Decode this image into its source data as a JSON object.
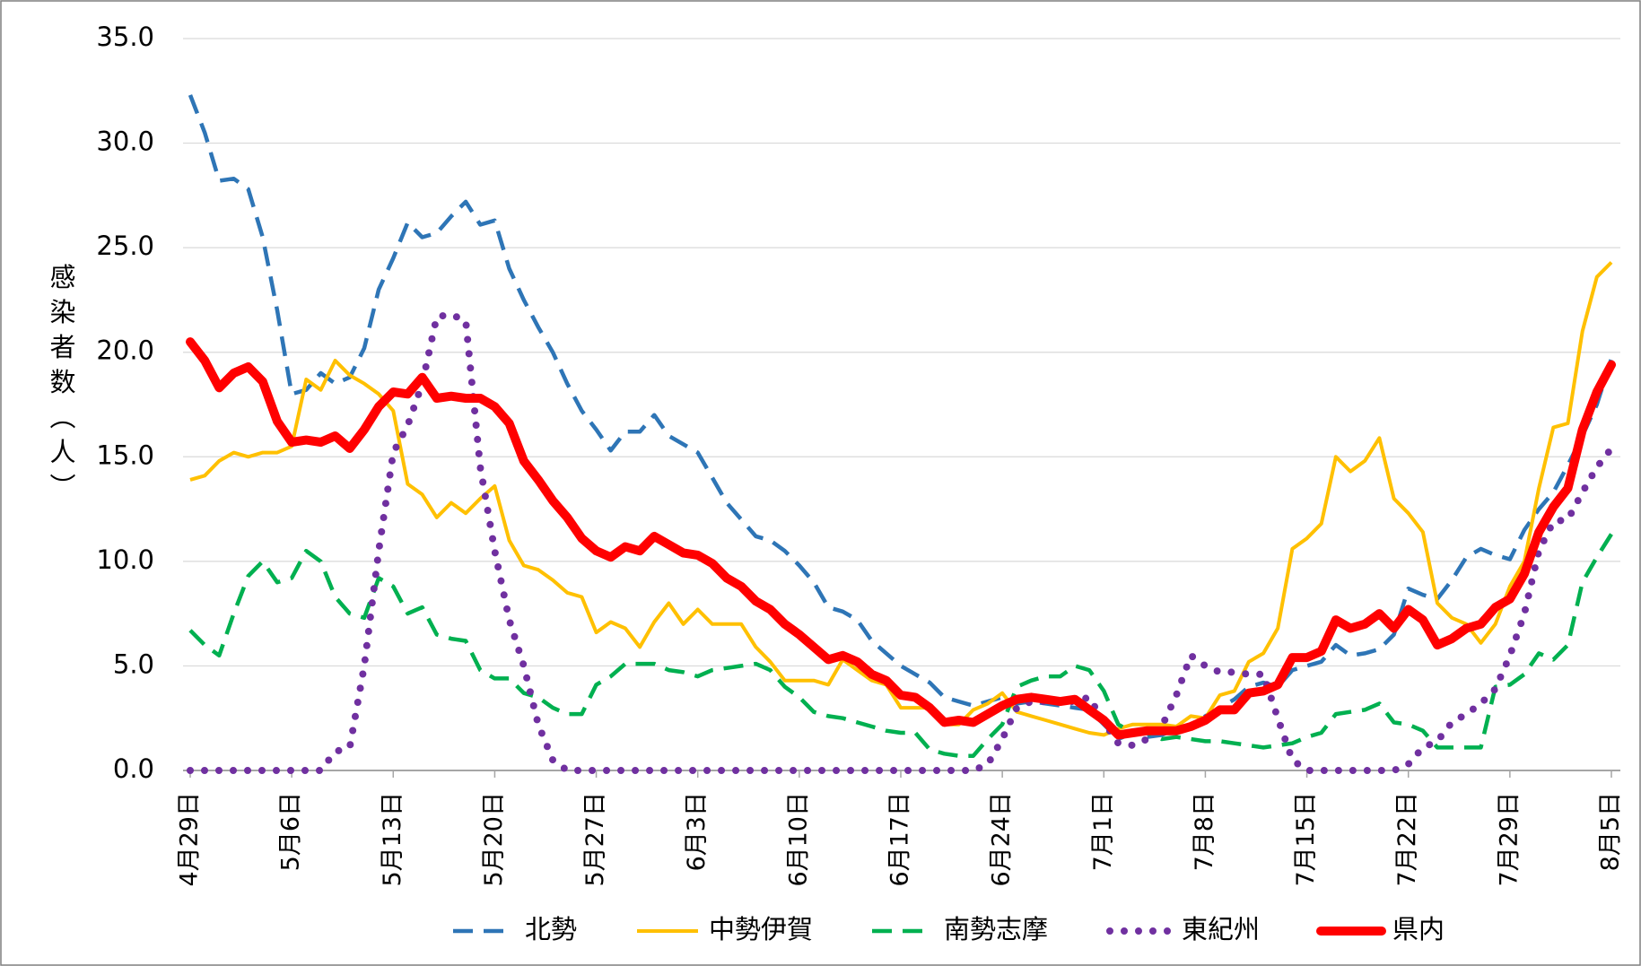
{
  "chart_data": {
    "type": "line",
    "y_label": "感染者数（人）",
    "categories": [
      "4月29日",
      null,
      null,
      null,
      null,
      null,
      null,
      "5月6日",
      null,
      null,
      null,
      null,
      null,
      null,
      "5月13日",
      null,
      null,
      null,
      null,
      null,
      null,
      "5月20日",
      null,
      null,
      null,
      null,
      null,
      null,
      "5月27日",
      null,
      null,
      null,
      null,
      null,
      null,
      "6月3日",
      null,
      null,
      null,
      null,
      null,
      null,
      "6月10日",
      null,
      null,
      null,
      null,
      null,
      null,
      "6月17日",
      null,
      null,
      null,
      null,
      null,
      null,
      "6月24日",
      null,
      null,
      null,
      null,
      null,
      null,
      "7月1日",
      null,
      null,
      null,
      null,
      null,
      null,
      "7月8日",
      null,
      null,
      null,
      null,
      null,
      null,
      "7月15日",
      null,
      null,
      null,
      null,
      null,
      null,
      "7月22日",
      null,
      null,
      null,
      null,
      null,
      null,
      "7月29日",
      null,
      null,
      null,
      null,
      null,
      null,
      "8月5日"
    ],
    "series": [
      {
        "name": "北勢",
        "color": "#2e75b6",
        "style": "dashed",
        "values": [
          32.3,
          30.5,
          28.2,
          28.3,
          27.8,
          25.5,
          22,
          18,
          18.2,
          19,
          18.5,
          18.8,
          20.2,
          23,
          24.5,
          26.2,
          25.5,
          25.7,
          26.5,
          27.2,
          26.1,
          26.3,
          24,
          22.5,
          21.2,
          20,
          18.5,
          17.2,
          16.3,
          15.3,
          16.2,
          16.2,
          17,
          16,
          15.6,
          15.2,
          14,
          12.8,
          12,
          11.2,
          11,
          10.5,
          9.8,
          9,
          7.8,
          7.6,
          7.2,
          6.2,
          5.6,
          5,
          4.6,
          4.2,
          3.5,
          3.3,
          3.1,
          3.3,
          3.5,
          3.2,
          3.3,
          3.2,
          3.1,
          3,
          2.9,
          2.2,
          1.5,
          1.8,
          1.6,
          1.7,
          2,
          2.2,
          2.6,
          3,
          3.4,
          4,
          4.2,
          4,
          4.8,
          5,
          5.2,
          6,
          5.5,
          5.6,
          5.8,
          6.5,
          8.7,
          8.4,
          8.2,
          9.1,
          10.2,
          10.6,
          10.3,
          10.1,
          11.5,
          12.5,
          13.3,
          14.6,
          16,
          17.5,
          19.7
        ]
      },
      {
        "name": "中勢伊賀",
        "color": "#ffc000",
        "style": "solid",
        "values": [
          13.9,
          14.1,
          14.8,
          15.2,
          15,
          15.2,
          15.2,
          15.5,
          18.7,
          18.2,
          19.6,
          18.9,
          18.5,
          18,
          17.2,
          13.7,
          13.2,
          12.1,
          12.8,
          12.3,
          13,
          13.6,
          11,
          9.8,
          9.6,
          9.1,
          8.5,
          8.3,
          6.6,
          7.1,
          6.8,
          5.9,
          7.1,
          8,
          7,
          7.7,
          7,
          7,
          7,
          5.9,
          5.2,
          4.3,
          4.3,
          4.3,
          4.1,
          5.3,
          4.8,
          4.3,
          4.1,
          3,
          3,
          3,
          2.2,
          2.2,
          2.9,
          3.2,
          3.7,
          2.8,
          2.6,
          2.4,
          2.2,
          2,
          1.8,
          1.7,
          2,
          2.2,
          2.2,
          2.2,
          2.1,
          2.6,
          2.5,
          3.6,
          3.8,
          5.2,
          5.6,
          6.8,
          10.6,
          11.1,
          11.8,
          15,
          14.3,
          14.8,
          15.9,
          13,
          12.3,
          11.4,
          8,
          7.3,
          7,
          6.1,
          7,
          8.8,
          10,
          13.5,
          16.4,
          16.6,
          21,
          23.6,
          24.3
        ]
      },
      {
        "name": "南勢志摩",
        "color": "#00b050",
        "style": "dashed",
        "values": [
          6.7,
          6,
          5.5,
          7.5,
          9.3,
          10,
          9,
          9.2,
          10.5,
          10,
          8.3,
          7.5,
          7.3,
          9.2,
          8.8,
          7.5,
          7.8,
          6.5,
          6.3,
          6.2,
          4.8,
          4.4,
          4.4,
          3.7,
          3.5,
          3,
          2.7,
          2.7,
          4.1,
          4.5,
          5.1,
          5.1,
          5.1,
          4.8,
          4.7,
          4.5,
          4.8,
          4.9,
          5,
          5.1,
          4.8,
          4,
          3.5,
          2.8,
          2.6,
          2.5,
          2.3,
          2.1,
          1.9,
          1.8,
          1.8,
          1,
          0.8,
          0.7,
          0.7,
          1.5,
          2.2,
          4,
          4.3,
          4.5,
          4.5,
          5,
          4.8,
          3.8,
          2.2,
          1.8,
          1.8,
          1.5,
          1.6,
          1.5,
          1.4,
          1.4,
          1.3,
          1.2,
          1.1,
          1.2,
          1.3,
          1.6,
          1.8,
          2.7,
          2.8,
          2.9,
          3.2,
          2.3,
          2.2,
          1.9,
          1.1,
          1.1,
          1.1,
          1.1,
          4,
          4.1,
          4.6,
          5.6,
          5.3,
          6,
          9,
          10.2,
          11.3
        ]
      },
      {
        "name": "東紀州",
        "color": "#7030a0",
        "style": "dotted",
        "values": [
          0,
          0,
          0,
          0,
          0,
          0,
          0,
          0,
          0,
          0,
          0.9,
          1.1,
          5,
          10.5,
          15.2,
          16.5,
          18.5,
          21.7,
          21.8,
          21.5,
          14.5,
          10.5,
          7.2,
          5,
          2.2,
          0.5,
          0,
          0,
          0,
          0,
          0,
          0,
          0,
          0,
          0,
          0,
          0,
          0,
          0,
          0,
          0,
          0,
          0,
          0,
          0,
          0,
          0,
          0,
          0,
          0,
          0,
          0,
          0,
          0,
          0,
          0.3,
          1.5,
          3,
          3.3,
          3.3,
          3.3,
          3.3,
          3.5,
          2.3,
          1.3,
          1.2,
          1.5,
          2.1,
          3.6,
          5.5,
          5,
          4.7,
          4.7,
          4.6,
          4.6,
          2.5,
          0.5,
          0,
          0,
          0,
          0,
          0,
          0,
          0,
          0.3,
          1.1,
          1.4,
          2.3,
          2.7,
          3.2,
          3.9,
          5.5,
          7.5,
          10.5,
          11.9,
          12,
          13.3,
          14.5,
          15.4
        ]
      },
      {
        "name": "県内",
        "color": "#ff0000",
        "style": "thick",
        "values": [
          20.5,
          19.6,
          18.3,
          19,
          19.3,
          18.6,
          16.7,
          15.7,
          15.8,
          15.7,
          16,
          15.4,
          16.3,
          17.4,
          18.1,
          18,
          18.8,
          17.8,
          17.9,
          17.8,
          17.8,
          17.4,
          16.6,
          14.8,
          13.9,
          12.9,
          12.1,
          11.1,
          10.5,
          10.2,
          10.7,
          10.5,
          11.2,
          10.8,
          10.4,
          10.3,
          9.9,
          9.2,
          8.8,
          8.1,
          7.7,
          7,
          6.5,
          5.9,
          5.3,
          5.5,
          5.2,
          4.6,
          4.3,
          3.6,
          3.5,
          3,
          2.3,
          2.4,
          2.3,
          2.7,
          3.1,
          3.4,
          3.5,
          3.4,
          3.3,
          3.4,
          2.9,
          2.4,
          1.7,
          1.8,
          1.9,
          1.9,
          1.9,
          2.1,
          2.4,
          2.9,
          2.9,
          3.7,
          3.8,
          4.1,
          5.4,
          5.4,
          5.7,
          7.2,
          6.8,
          7,
          7.5,
          6.8,
          7.7,
          7.2,
          6,
          6.3,
          6.8,
          7,
          7.8,
          8.2,
          9.4,
          11.4,
          12.6,
          13.5,
          16.3,
          18.1,
          19.4
        ]
      }
    ],
    "ylim": [
      0,
      35
    ],
    "yticks": [
      {
        "value": 0,
        "label": "0.0"
      },
      {
        "value": 5,
        "label": "5.0"
      },
      {
        "value": 10,
        "label": "10.0"
      },
      {
        "value": 15,
        "label": "15.0"
      },
      {
        "value": 20,
        "label": "20.0"
      },
      {
        "value": 25,
        "label": "25.0"
      },
      {
        "value": 30,
        "label": "30.0"
      },
      {
        "value": 35,
        "label": "35.0"
      }
    ],
    "grid": true,
    "legend": "bottom"
  }
}
